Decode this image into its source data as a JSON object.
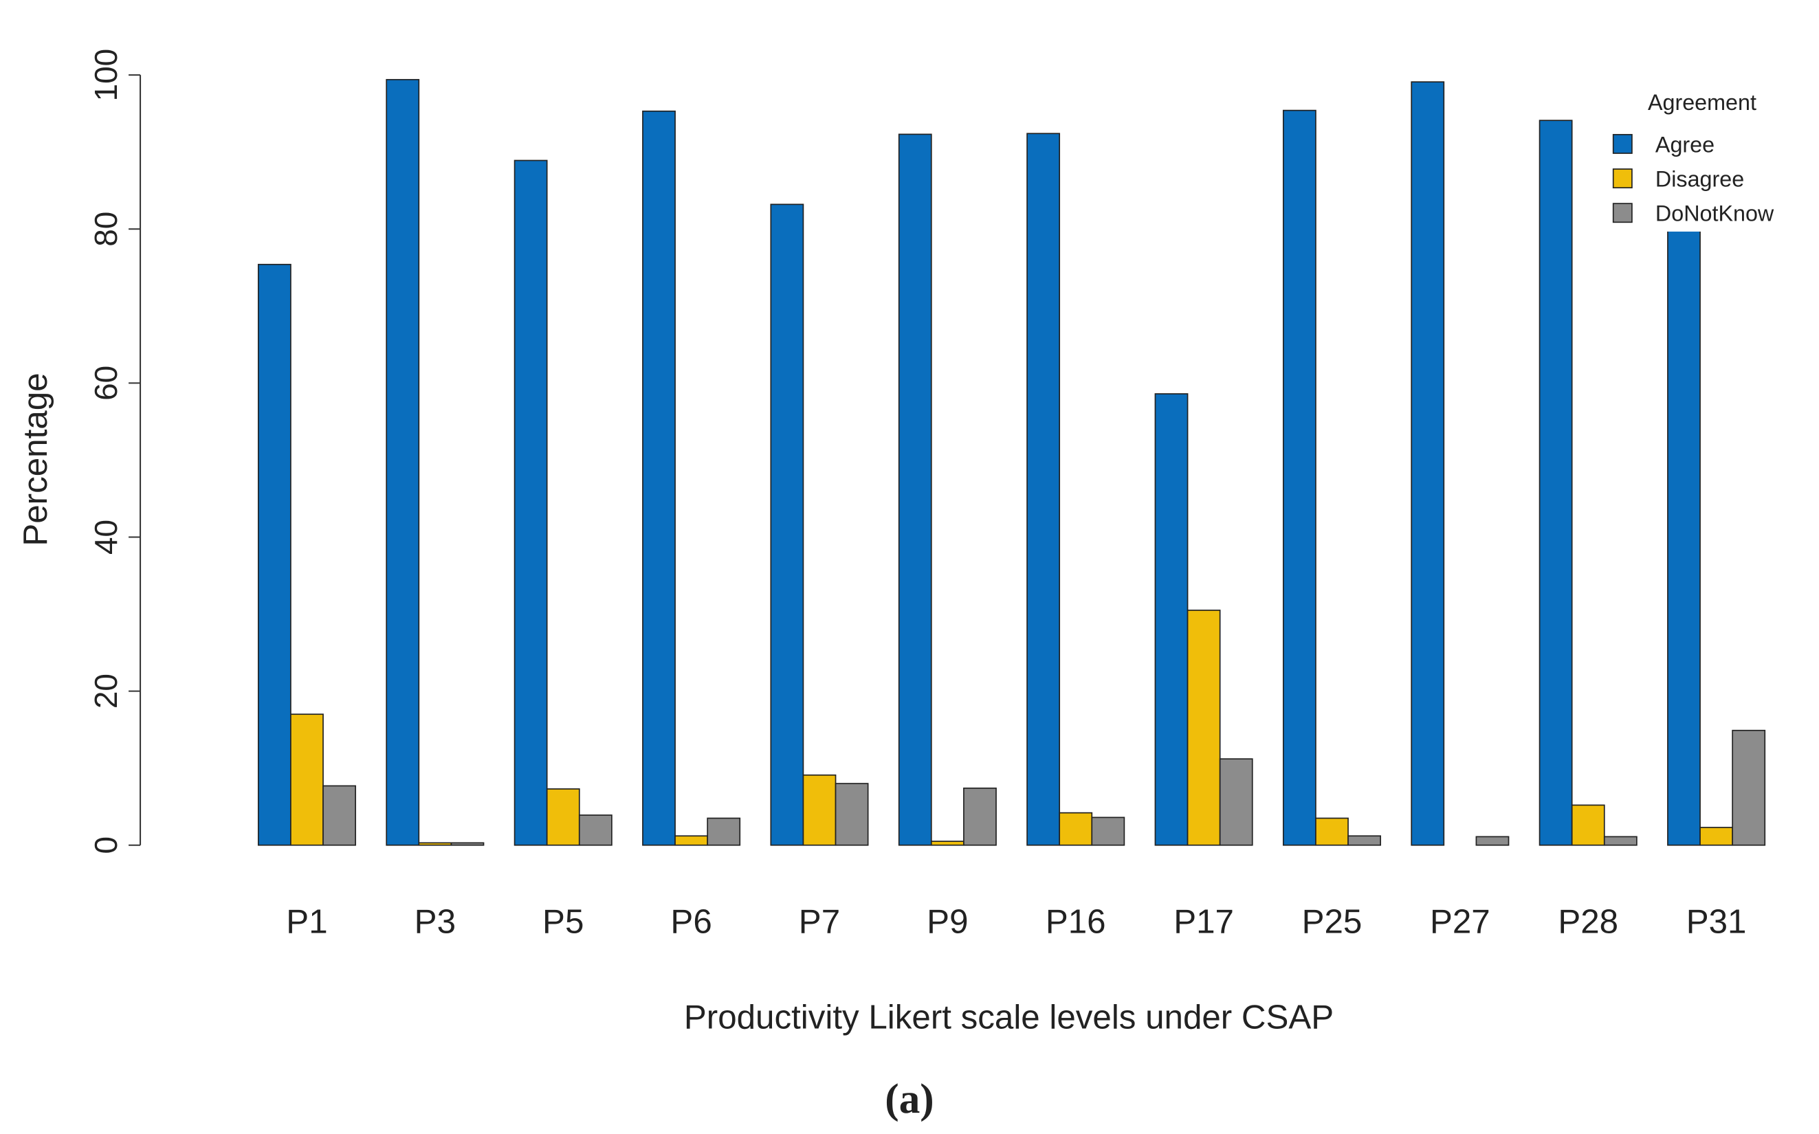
{
  "chart_data": {
    "type": "grouped_bar",
    "caption": "(a)",
    "x_label": "Productivity Likert scale levels under CSAP",
    "y_label": "Percentage",
    "legend_title": "Agreement",
    "legend_position": "top-right",
    "categories": [
      "P1",
      "P3",
      "P5",
      "P6",
      "P7",
      "P9",
      "P16",
      "P17",
      "P25",
      "P27",
      "P28",
      "P31"
    ],
    "series": [
      {
        "name": "Agree",
        "color": "#0a6ebd",
        "values": [
          75.4,
          99.4,
          88.9,
          95.3,
          83.2,
          92.3,
          92.4,
          58.6,
          95.4,
          99.1,
          94.1,
          82.8
        ]
      },
      {
        "name": "Disagree",
        "color": "#f0be0a",
        "values": [
          17.0,
          0.3,
          7.3,
          1.2,
          9.1,
          0.5,
          4.2,
          30.5,
          3.5,
          0,
          5.2,
          2.3
        ]
      },
      {
        "name": "DoNotKnow",
        "color": "#8c8c8c",
        "values": [
          7.7,
          0.3,
          3.9,
          3.5,
          8.0,
          7.4,
          3.6,
          11.2,
          1.2,
          1.1,
          1.1,
          14.9
        ]
      }
    ],
    "ylim": [
      0,
      100
    ],
    "yticks": [
      0,
      20,
      40,
      60,
      80,
      100
    ]
  }
}
